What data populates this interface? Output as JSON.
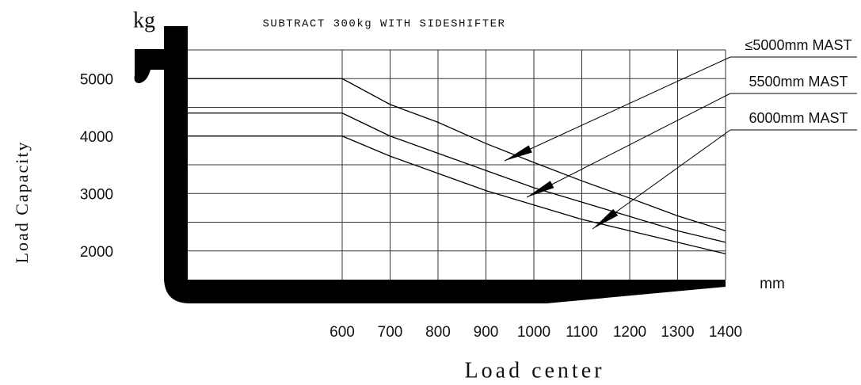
{
  "chart_data": {
    "type": "line",
    "title": "SUBTRACT 300kg WITH SIDESHIFTER",
    "y_unit": "kg",
    "x_unit": "mm",
    "y_label": "Load Capacity",
    "x_label": "Load center",
    "x": [
      600,
      700,
      800,
      900,
      1000,
      1100,
      1200,
      1300,
      1400
    ],
    "series": [
      {
        "name": "≤5000mm MAST",
        "color": "#000000",
        "values": [
          5000,
          4550,
          4240,
          3870,
          3540,
          3220,
          2920,
          2610,
          2350
        ]
      },
      {
        "name": "5500mm MAST",
        "color": "#000000",
        "values": [
          4400,
          4000,
          3700,
          3400,
          3100,
          2850,
          2600,
          2350,
          2150
        ]
      },
      {
        "name": "6000mm MAST",
        "color": "#000000",
        "values": [
          4000,
          3650,
          3350,
          3050,
          2800,
          2550,
          2350,
          2150,
          1950
        ]
      }
    ],
    "xlim": [
      600,
      1400
    ],
    "ylim": [
      1500,
      5500
    ],
    "xticks": [
      600,
      700,
      800,
      900,
      1000,
      1100,
      1200,
      1300,
      1400
    ],
    "yticks": [
      2000,
      3000,
      4000,
      5000
    ],
    "ygrid": [
      2000,
      2500,
      3000,
      3500,
      4000,
      4500,
      5000,
      5500
    ],
    "grid": true
  }
}
